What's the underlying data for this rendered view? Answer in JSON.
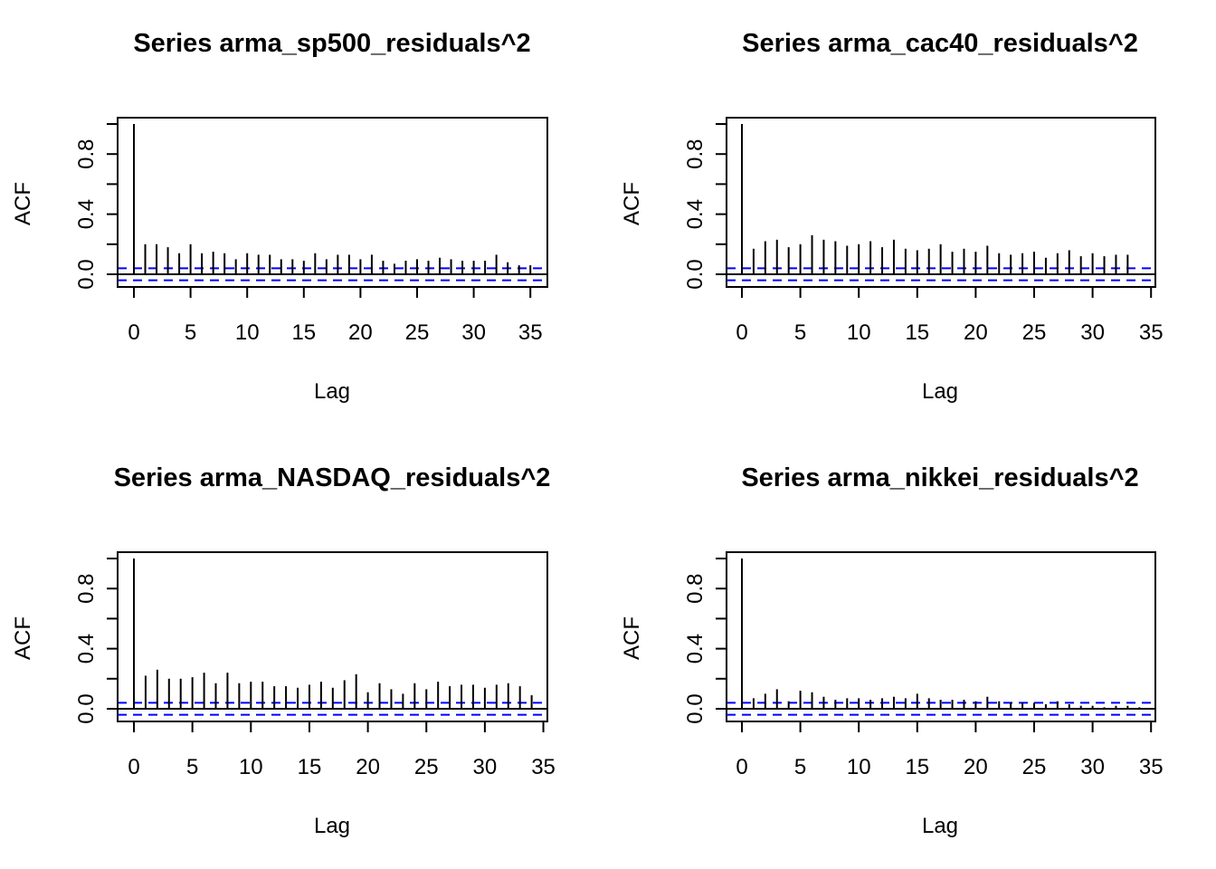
{
  "chart_data": [
    {
      "type": "bar",
      "subtype": "acf",
      "title": "Series  arma_sp500_residuals^2",
      "xlabel": "Lag",
      "ylabel": "ACF",
      "xlim": [
        0,
        35
      ],
      "ylim": [
        -0.08,
        1.0
      ],
      "x_ticks": [
        "0",
        "5",
        "10",
        "15",
        "20",
        "25",
        "30",
        "35"
      ],
      "y_ticks": [
        "0.0",
        "0.4",
        "0.8"
      ],
      "ci": 0.04,
      "ci_color": "#0000ff",
      "grid": false,
      "lags": [
        0,
        1,
        2,
        3,
        4,
        5,
        6,
        7,
        8,
        9,
        10,
        11,
        12,
        13,
        14,
        15,
        16,
        17,
        18,
        19,
        20,
        21,
        22,
        23,
        24,
        25,
        26,
        27,
        28,
        29,
        30,
        31,
        32,
        33,
        34,
        35
      ],
      "values": [
        1.0,
        0.2,
        0.2,
        0.18,
        0.14,
        0.2,
        0.14,
        0.15,
        0.14,
        0.1,
        0.14,
        0.13,
        0.13,
        0.1,
        0.1,
        0.09,
        0.14,
        0.1,
        0.13,
        0.13,
        0.1,
        0.13,
        0.09,
        0.07,
        0.09,
        0.1,
        0.09,
        0.11,
        0.1,
        0.09,
        0.09,
        0.09,
        0.13,
        0.08,
        0.06,
        0.06
      ]
    },
    {
      "type": "bar",
      "subtype": "acf",
      "title": "Series  arma_cac40_residuals^2",
      "xlabel": "Lag",
      "ylabel": "ACF",
      "xlim": [
        0,
        35
      ],
      "ylim": [
        -0.08,
        1.0
      ],
      "x_ticks": [
        "0",
        "5",
        "10",
        "15",
        "20",
        "25",
        "30",
        "35"
      ],
      "y_ticks": [
        "0.0",
        "0.4",
        "0.8"
      ],
      "ci": 0.04,
      "ci_color": "#0000ff",
      "grid": false,
      "lags": [
        0,
        1,
        2,
        3,
        4,
        5,
        6,
        7,
        8,
        9,
        10,
        11,
        12,
        13,
        14,
        15,
        16,
        17,
        18,
        19,
        20,
        21,
        22,
        23,
        24,
        25,
        26,
        27,
        28,
        29,
        30,
        31,
        32,
        33
      ],
      "values": [
        1.0,
        0.17,
        0.22,
        0.23,
        0.18,
        0.2,
        0.26,
        0.23,
        0.22,
        0.19,
        0.2,
        0.22,
        0.18,
        0.23,
        0.17,
        0.16,
        0.17,
        0.2,
        0.15,
        0.17,
        0.15,
        0.19,
        0.14,
        0.13,
        0.14,
        0.15,
        0.11,
        0.14,
        0.16,
        0.12,
        0.14,
        0.12,
        0.13,
        0.13
      ]
    },
    {
      "type": "bar",
      "subtype": "acf",
      "title": "Series  arma_NASDAQ_residuals^2",
      "xlabel": "Lag",
      "ylabel": "ACF",
      "xlim": [
        0,
        35
      ],
      "ylim": [
        -0.08,
        1.0
      ],
      "x_ticks": [
        "0",
        "5",
        "10",
        "15",
        "20",
        "25",
        "30",
        "35"
      ],
      "y_ticks": [
        "0.0",
        "0.4",
        "0.8"
      ],
      "ci": 0.04,
      "ci_color": "#0000ff",
      "grid": false,
      "lags": [
        0,
        1,
        2,
        3,
        4,
        5,
        6,
        7,
        8,
        9,
        10,
        11,
        12,
        13,
        14,
        15,
        16,
        17,
        18,
        19,
        20,
        21,
        22,
        23,
        24,
        25,
        26,
        27,
        28,
        29,
        30,
        31,
        32,
        33,
        34
      ],
      "values": [
        1.0,
        0.22,
        0.26,
        0.2,
        0.2,
        0.21,
        0.24,
        0.17,
        0.24,
        0.17,
        0.18,
        0.18,
        0.15,
        0.15,
        0.14,
        0.16,
        0.18,
        0.14,
        0.19,
        0.23,
        0.11,
        0.17,
        0.13,
        0.1,
        0.17,
        0.13,
        0.18,
        0.15,
        0.16,
        0.16,
        0.14,
        0.16,
        0.17,
        0.15,
        0.09
      ]
    },
    {
      "type": "bar",
      "subtype": "acf",
      "title": "Series  arma_nikkei_residuals^2",
      "xlabel": "Lag",
      "ylabel": "ACF",
      "xlim": [
        0,
        35
      ],
      "ylim": [
        -0.08,
        1.0
      ],
      "x_ticks": [
        "0",
        "5",
        "10",
        "15",
        "20",
        "25",
        "30",
        "35"
      ],
      "y_ticks": [
        "0.0",
        "0.4",
        "0.8"
      ],
      "ci": 0.04,
      "ci_color": "#0000ff",
      "grid": false,
      "lags": [
        0,
        1,
        2,
        3,
        4,
        5,
        6,
        7,
        8,
        9,
        10,
        11,
        12,
        13,
        14,
        15,
        16,
        17,
        18,
        19,
        20,
        21,
        22,
        23,
        24,
        25,
        26,
        27,
        28,
        29,
        30,
        31,
        32,
        33,
        34
      ],
      "values": [
        1.0,
        0.07,
        0.1,
        0.13,
        0.05,
        0.12,
        0.11,
        0.08,
        0.06,
        0.07,
        0.07,
        0.06,
        0.07,
        0.08,
        0.07,
        0.1,
        0.07,
        0.06,
        0.06,
        0.06,
        0.05,
        0.08,
        0.05,
        0.04,
        0.04,
        0.04,
        0.03,
        0.05,
        0.03,
        0.02,
        0.02,
        0.01,
        0.02,
        0.02,
        0.01
      ]
    }
  ]
}
